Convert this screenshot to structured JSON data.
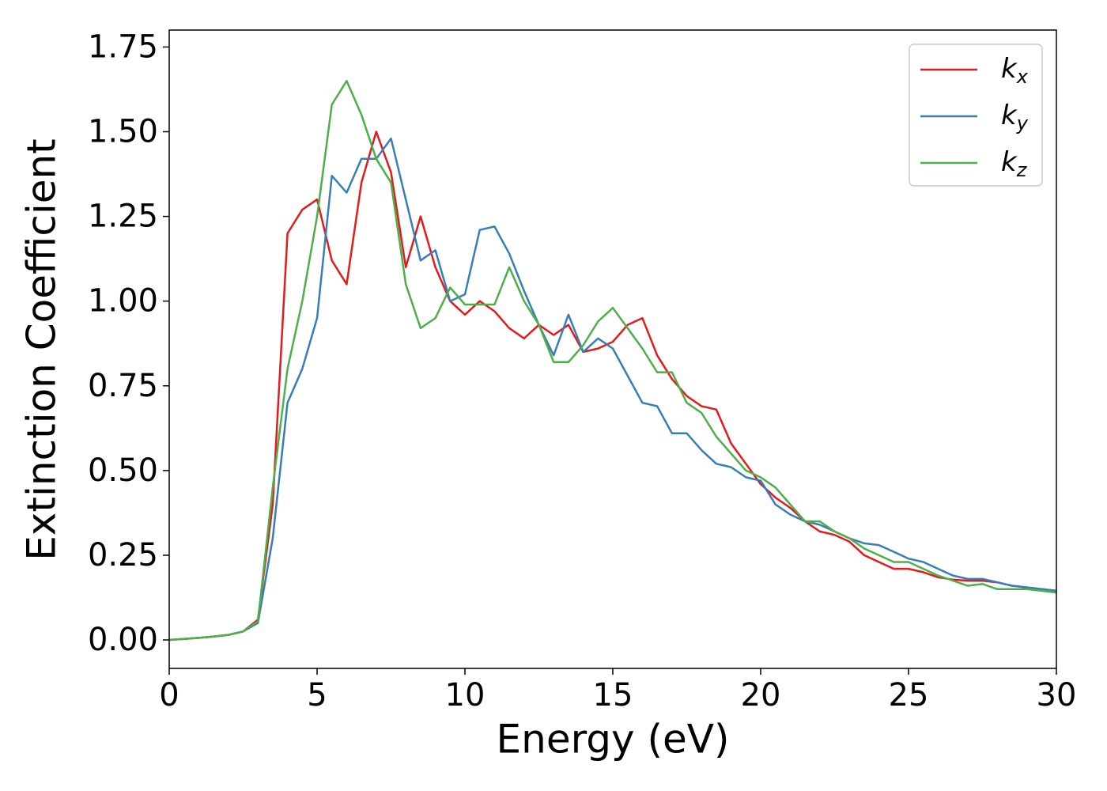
{
  "chart_data": {
    "type": "line",
    "xlabel": "Energy (eV)",
    "ylabel": "Extinction Coefficient",
    "x": [
      0,
      0.5,
      1,
      1.5,
      2,
      2.5,
      3,
      3.5,
      4,
      4.5,
      5,
      5.5,
      6,
      6.5,
      7,
      7.5,
      8,
      8.5,
      9,
      9.5,
      10,
      10.5,
      11,
      11.5,
      12,
      12.5,
      13,
      13.5,
      14,
      14.5,
      15,
      15.5,
      16,
      16.5,
      17,
      17.5,
      18,
      18.5,
      19,
      19.5,
      20,
      20.5,
      21,
      21.5,
      22,
      22.5,
      23,
      23.5,
      24,
      24.5,
      25,
      25.5,
      26,
      26.5,
      27,
      27.5,
      28,
      28.5,
      29,
      29.5,
      30
    ],
    "series": [
      {
        "name": "kx",
        "color": "#e41a1c",
        "values": [
          0,
          0.003,
          0.006,
          0.01,
          0.015,
          0.025,
          0.06,
          0.4,
          1.2,
          1.27,
          1.3,
          1.12,
          1.05,
          1.35,
          1.5,
          1.38,
          1.1,
          1.25,
          1.1,
          1.0,
          0.96,
          1.0,
          0.97,
          0.92,
          0.89,
          0.93,
          0.9,
          0.93,
          0.85,
          0.86,
          0.88,
          0.93,
          0.95,
          0.84,
          0.77,
          0.72,
          0.69,
          0.68,
          0.58,
          0.52,
          0.46,
          0.42,
          0.39,
          0.35,
          0.32,
          0.31,
          0.29,
          0.25,
          0.23,
          0.21,
          0.21,
          0.2,
          0.185,
          0.178,
          0.175,
          0.175,
          0.17,
          0.16,
          0.155,
          0.15,
          0.145
        ]
      },
      {
        "name": "ky",
        "color": "#377eb8",
        "values": [
          0,
          0.003,
          0.006,
          0.01,
          0.015,
          0.025,
          0.05,
          0.3,
          0.7,
          0.8,
          0.95,
          1.37,
          1.32,
          1.42,
          1.42,
          1.48,
          1.3,
          1.12,
          1.15,
          1.0,
          1.02,
          1.21,
          1.22,
          1.14,
          1.03,
          0.93,
          0.84,
          0.96,
          0.85,
          0.89,
          0.86,
          0.78,
          0.7,
          0.69,
          0.61,
          0.61,
          0.56,
          0.52,
          0.51,
          0.48,
          0.47,
          0.4,
          0.37,
          0.35,
          0.34,
          0.32,
          0.3,
          0.285,
          0.28,
          0.26,
          0.24,
          0.23,
          0.21,
          0.19,
          0.18,
          0.18,
          0.17,
          0.16,
          0.155,
          0.15,
          0.145
        ]
      },
      {
        "name": "kz",
        "color": "#4daf4a",
        "values": [
          0,
          0.003,
          0.006,
          0.01,
          0.015,
          0.025,
          0.055,
          0.45,
          0.8,
          1.0,
          1.25,
          1.58,
          1.65,
          1.55,
          1.42,
          1.35,
          1.05,
          0.92,
          0.95,
          1.04,
          0.99,
          0.99,
          0.99,
          1.1,
          1.0,
          0.93,
          0.82,
          0.82,
          0.87,
          0.94,
          0.98,
          0.92,
          0.86,
          0.79,
          0.79,
          0.7,
          0.67,
          0.6,
          0.55,
          0.5,
          0.48,
          0.45,
          0.4,
          0.35,
          0.35,
          0.32,
          0.3,
          0.27,
          0.25,
          0.23,
          0.23,
          0.21,
          0.19,
          0.175,
          0.16,
          0.165,
          0.15,
          0.15,
          0.15,
          0.145,
          0.14
        ]
      }
    ],
    "xlim": [
      0,
      30
    ],
    "xticks": [
      0,
      5,
      10,
      15,
      20,
      25,
      30
    ],
    "ylim": [
      -0.084,
      1.8
    ],
    "yticks": [
      {
        "value": 0,
        "label": "0.00"
      },
      {
        "value": 0.25,
        "label": "0.25"
      },
      {
        "value": 0.5,
        "label": "0.50"
      },
      {
        "value": 0.75,
        "label": "0.75"
      },
      {
        "value": 1,
        "label": "1.00"
      },
      {
        "value": 1.25,
        "label": "1.25"
      },
      {
        "value": 1.5,
        "label": "1.50"
      },
      {
        "value": 1.75,
        "label": "1.75"
      }
    ],
    "grid": false,
    "legend": "upper right"
  }
}
